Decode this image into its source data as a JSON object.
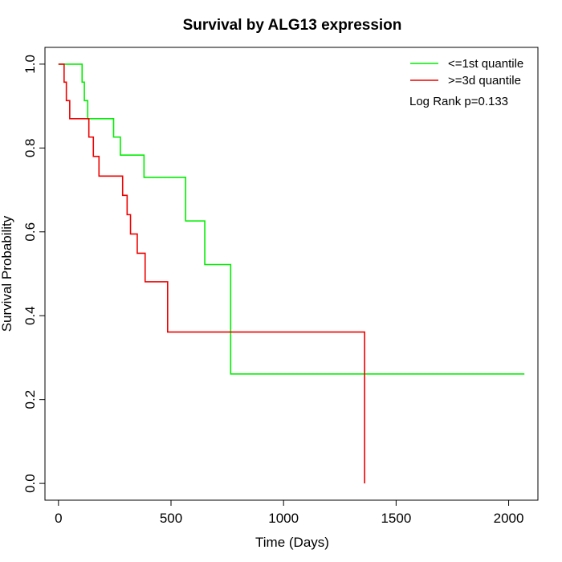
{
  "chart_data": {
    "type": "line",
    "title": "Survival by ALG13 expression",
    "xlabel": "Time (Days)",
    "ylabel": "Survival Probability",
    "xlim": [
      -60,
      2130
    ],
    "ylim": [
      -0.04,
      1.04
    ],
    "xticks": [
      0,
      500,
      1000,
      1500,
      2000
    ],
    "yticks": [
      0.0,
      0.2,
      0.4,
      0.6,
      0.8,
      1.0
    ],
    "xtick_labels": [
      "0",
      "500",
      "1000",
      "1500",
      "2000"
    ],
    "ytick_labels": [
      "0.0",
      "0.2",
      "0.4",
      "0.6",
      "0.8",
      "1.0"
    ],
    "grid": false,
    "legend_position": "top-right",
    "annotation": "Log Rank p=0.133",
    "series": [
      {
        "name": "<=1st quantile",
        "color": "#00ee00",
        "x": [
          0,
          105,
          115,
          130,
          245,
          275,
          380,
          565,
          650,
          765,
          2070
        ],
        "y": [
          1.0,
          0.957,
          0.913,
          0.87,
          0.826,
          0.783,
          0.73,
          0.626,
          0.522,
          0.261,
          0.261
        ]
      },
      {
        "name": ">=3d quantile",
        "color": "#ee0000",
        "x": [
          0,
          25,
          35,
          50,
          135,
          155,
          180,
          285,
          305,
          320,
          350,
          385,
          485,
          1360,
          1360
        ],
        "y": [
          1.0,
          0.957,
          0.913,
          0.87,
          0.826,
          0.78,
          0.733,
          0.687,
          0.641,
          0.595,
          0.549,
          0.481,
          0.361,
          0.361,
          0.0
        ]
      }
    ]
  }
}
